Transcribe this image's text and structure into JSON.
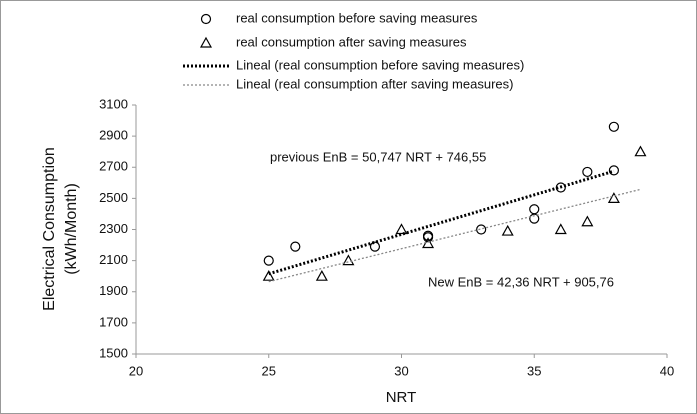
{
  "chart_data": {
    "type": "scatter",
    "xlabel": "NRT",
    "ylabel": [
      "Electrical Consumption",
      "(kWh/Month)"
    ],
    "xlim": [
      20,
      40
    ],
    "xticks": [
      20,
      25,
      30,
      35,
      40
    ],
    "ylim": [
      1500,
      3100
    ],
    "yticks": [
      1500,
      1700,
      1900,
      2100,
      2300,
      2500,
      2700,
      2900,
      3100
    ],
    "grid": false,
    "legend": "top",
    "series": [
      {
        "name": "real consumption before saving measures",
        "color": "#000000",
        "marker": "circle",
        "x": [
          25,
          26,
          29,
          31,
          31,
          33,
          35,
          35,
          36,
          37,
          38,
          38
        ],
        "values": [
          2100,
          2190,
          2190,
          2260,
          2250,
          2300,
          2430,
          2370,
          2570,
          2670,
          2680,
          2960
        ]
      },
      {
        "name": "real consumption after saving measures",
        "color": "#000000",
        "marker": "triangle",
        "x": [
          25,
          27,
          28,
          30,
          31,
          34,
          36,
          37,
          38,
          39
        ],
        "values": [
          2000,
          2000,
          2100,
          2300,
          2210,
          2290,
          2300,
          2350,
          2500,
          2800
        ]
      },
      {
        "name": "Lineal (real consumption before saving measures)",
        "color": "#000000",
        "marker": "dotted-thick",
        "x": [
          25,
          38
        ],
        "values": [
          2015.225,
          2674.936
        ]
      },
      {
        "name": "Lineal (real consumption after saving measures)",
        "color": "#888888",
        "marker": "dotted-thin",
        "x": [
          25,
          39
        ],
        "values": [
          1964.76,
          2557.8
        ]
      }
    ],
    "annotations": [
      "previous EnB = 50,747 NRT + 746,55",
      "New EnB = 42,36 NRT + 905,76"
    ]
  }
}
